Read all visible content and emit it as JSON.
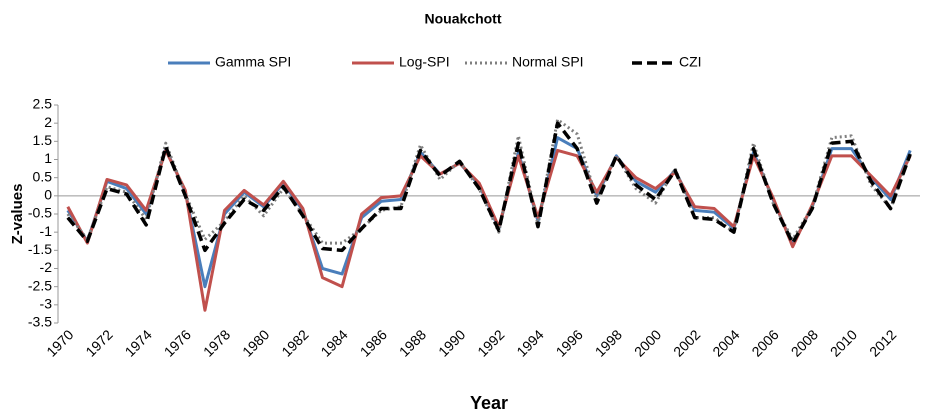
{
  "chart_data": {
    "type": "line",
    "title": "Nouakchott",
    "xlabel": "Year",
    "ylabel": "Z-values",
    "categories": [
      "1970",
      null,
      "1972",
      null,
      "1974",
      null,
      "1976",
      null,
      "1978",
      null,
      "1980",
      null,
      "1982",
      null,
      "1984",
      null,
      "1986",
      null,
      "1988",
      null,
      "1990",
      null,
      "1992",
      null,
      "1994",
      null,
      "1996",
      null,
      "1998",
      null,
      "2000",
      null,
      "2002",
      null,
      "2004",
      null,
      "2006",
      null,
      "2008",
      null,
      "2010",
      null,
      "2012",
      null
    ],
    "ylim": [
      -3.5,
      2.5
    ],
    "yticks": [
      2.5,
      2,
      1.5,
      1,
      0.5,
      0,
      -0.5,
      -1,
      -1.5,
      -2,
      -2.5,
      -3,
      -3.5
    ],
    "grid": false,
    "series": [
      {
        "name": "Gamma SPI",
        "color": "#4a7ebb",
        "dash": "solid",
        "values": [
          -0.4,
          -1.25,
          0.4,
          0.2,
          -0.5,
          1.3,
          0.1,
          -2.5,
          -0.5,
          0.1,
          -0.3,
          0.35,
          -0.4,
          -2.0,
          -2.15,
          -0.6,
          -0.15,
          -0.1,
          1.2,
          0.6,
          0.9,
          0.3,
          -0.9,
          1.2,
          -0.7,
          1.6,
          1.3,
          0.0,
          1.1,
          0.4,
          0.1,
          0.7,
          -0.4,
          -0.45,
          -0.9,
          1.2,
          -0.1,
          -1.35,
          -0.3,
          1.3,
          1.3,
          0.5,
          -0.1,
          1.25
        ]
      },
      {
        "name": "Log-SPI",
        "color": "#c0504d",
        "dash": "solid",
        "values": [
          -0.3,
          -1.3,
          0.45,
          0.3,
          -0.4,
          1.25,
          0.15,
          -3.15,
          -0.4,
          0.15,
          -0.25,
          0.4,
          -0.35,
          -2.25,
          -2.5,
          -0.5,
          -0.05,
          0.0,
          1.1,
          0.6,
          0.9,
          0.35,
          -0.85,
          1.1,
          -0.6,
          1.25,
          1.1,
          0.1,
          1.05,
          0.5,
          0.2,
          0.65,
          -0.3,
          -0.35,
          -0.85,
          1.1,
          -0.05,
          -1.4,
          -0.25,
          1.1,
          1.1,
          0.55,
          0.0,
          1.1
        ]
      },
      {
        "name": "Normal SPI",
        "color": "#7f7f7f",
        "dash": "dotted",
        "values": [
          -0.5,
          -1.2,
          0.25,
          0.1,
          -0.65,
          1.45,
          0.05,
          -1.2,
          -0.7,
          0.0,
          -0.55,
          0.2,
          -0.5,
          -1.3,
          -1.3,
          -0.9,
          -0.4,
          -0.3,
          1.4,
          0.45,
          0.95,
          0.2,
          -1.0,
          1.65,
          -0.8,
          2.1,
          1.7,
          -0.1,
          1.1,
          0.2,
          -0.2,
          0.75,
          -0.6,
          -0.6,
          -1.0,
          1.45,
          -0.2,
          -1.2,
          -0.3,
          1.6,
          1.65,
          0.3,
          -0.35,
          1.2
        ]
      },
      {
        "name": "CZI",
        "color": "#000000",
        "dash": "dashed",
        "values": [
          -0.6,
          -1.25,
          0.2,
          0.05,
          -0.8,
          1.35,
          0.0,
          -1.5,
          -0.75,
          -0.1,
          -0.4,
          0.25,
          -0.55,
          -1.45,
          -1.5,
          -0.9,
          -0.35,
          -0.35,
          1.25,
          0.55,
          0.95,
          0.2,
          -0.95,
          1.45,
          -0.85,
          2.0,
          1.3,
          -0.2,
          1.1,
          0.3,
          -0.1,
          0.7,
          -0.6,
          -0.65,
          -1.0,
          1.3,
          -0.2,
          -1.3,
          -0.35,
          1.45,
          1.5,
          0.4,
          -0.35,
          1.15
        ]
      }
    ]
  }
}
